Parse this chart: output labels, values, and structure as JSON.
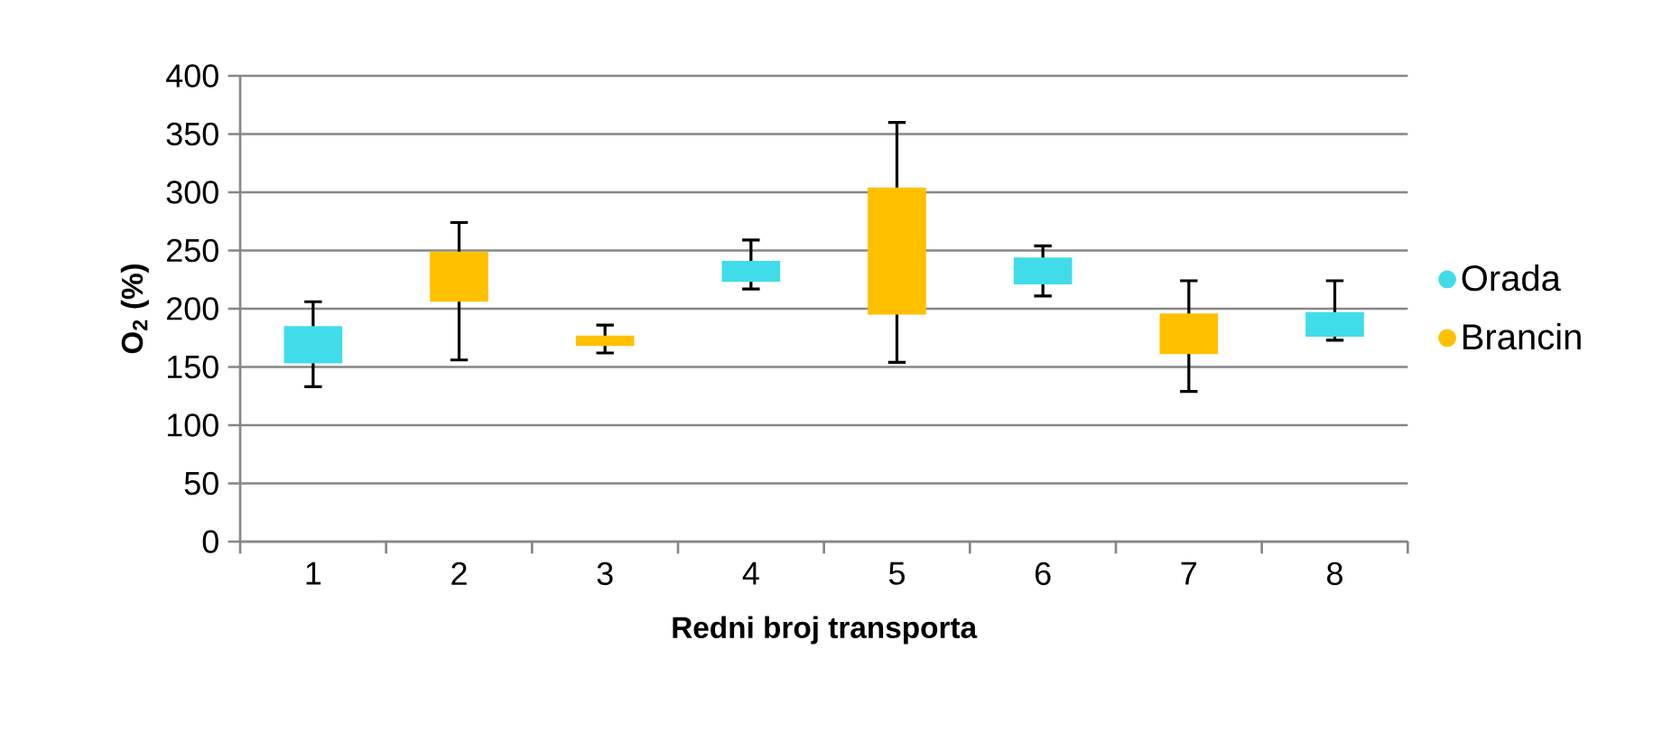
{
  "chart_data": {
    "type": "candlestick",
    "categories": [
      "1",
      "2",
      "3",
      "4",
      "5",
      "6",
      "7",
      "8"
    ],
    "xlabel": "Redni broj transporta",
    "ylabel": "O$_{2}$ (%)",
    "ylim": [
      0,
      400
    ],
    "yticks": [
      0,
      50,
      100,
      150,
      200,
      250,
      300,
      350,
      400
    ],
    "grid": "y",
    "legend": "right",
    "series": [
      {
        "name": "Orada",
        "color": "#40dcea",
        "x": [
          "1",
          "4",
          "6",
          "8"
        ],
        "ohlc": [
          [
            153,
            206,
            133,
            185
          ],
          [
            223,
            259,
            217,
            241
          ],
          [
            221,
            254,
            211,
            244
          ],
          [
            176,
            224,
            173,
            197
          ]
        ]
      },
      {
        "name": "Brancin",
        "color": "#ffc000",
        "x": [
          "2",
          "3",
          "5",
          "7"
        ],
        "ohlc": [
          [
            206,
            274,
            156,
            249
          ],
          [
            168,
            186,
            162,
            177
          ],
          [
            195,
            360,
            154,
            304
          ],
          [
            161,
            224,
            129,
            196
          ]
        ]
      }
    ]
  }
}
